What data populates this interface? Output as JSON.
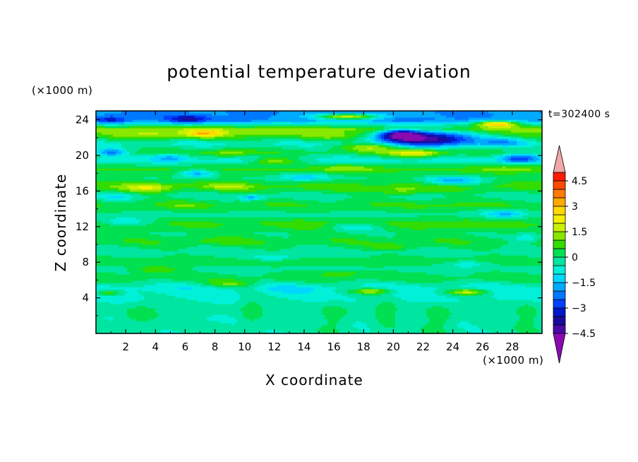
{
  "chart_data": {
    "type": "heatmap",
    "title": "potential temperature deviation",
    "xlabel": "X coordinate",
    "ylabel": "Z coordinate",
    "x_unit": "(×1000 m)",
    "y_unit": "(×1000 m)",
    "annotation": "t=302400 s",
    "xlim": [
      0,
      30
    ],
    "ylim": [
      0,
      25
    ],
    "x_ticks": [
      2,
      4,
      6,
      8,
      10,
      12,
      14,
      16,
      18,
      20,
      22,
      24,
      26,
      28
    ],
    "y_ticks": [
      4,
      8,
      12,
      16,
      20,
      24
    ],
    "colorbar": {
      "levels": [
        -5,
        -4.5,
        -4,
        -3.5,
        -3,
        -2.5,
        -2,
        -1.5,
        -1,
        -0.5,
        0,
        0.5,
        1,
        1.5,
        2,
        2.5,
        3,
        3.5,
        4,
        4.5,
        5
      ],
      "tick_labels": [
        "4.5",
        "3",
        "1.5",
        "0",
        "−1.5",
        "−3",
        "−4.5"
      ],
      "tick_values": [
        4.5,
        3,
        1.5,
        0,
        -1.5,
        -3,
        -4.5
      ],
      "colors": [
        "#8a0ab0",
        "#4a0aa8",
        "#1a0c9a",
        "#0018c8",
        "#0040ff",
        "#0078ff",
        "#00aaff",
        "#00d8ff",
        "#00f0d8",
        "#00e6a0",
        "#00e050",
        "#33dd00",
        "#88e800",
        "#c8f000",
        "#f0f000",
        "#ffd800",
        "#ffaa00",
        "#ff7a00",
        "#ff4a00",
        "#ff1a00",
        "#f0a8a8"
      ],
      "extend": "both"
    },
    "layers": [
      {
        "z": 24.0,
        "value": -2.0
      },
      {
        "z": 23.0,
        "value": 1.2
      },
      {
        "z": 22.2,
        "value": 0.6
      },
      {
        "z": 21.4,
        "value": -0.6
      },
      {
        "z": 20.4,
        "value": 0.3
      },
      {
        "z": 19.5,
        "value": -0.8
      },
      {
        "z": 18.5,
        "value": 0.6
      },
      {
        "z": 17.5,
        "value": 0.1
      },
      {
        "z": 16.5,
        "value": 0.8
      },
      {
        "z": 15.5,
        "value": -0.3
      },
      {
        "z": 14.5,
        "value": 0.5
      },
      {
        "z": 13.4,
        "value": -0.2
      },
      {
        "z": 12.4,
        "value": 0.6
      },
      {
        "z": 11.3,
        "value": 0.1
      },
      {
        "z": 10.3,
        "value": 0.4
      },
      {
        "z": 9.2,
        "value": -0.3
      },
      {
        "z": 8.2,
        "value": 0.3
      },
      {
        "z": 7.2,
        "value": -0.2
      },
      {
        "z": 6.2,
        "value": 0.3
      },
      {
        "z": 5.2,
        "value": -0.8
      },
      {
        "z": 4.0,
        "value": -0.6
      },
      {
        "z": 2.8,
        "value": -0.3
      },
      {
        "z": 1.6,
        "value": -0.5
      },
      {
        "z": 0.5,
        "value": -0.3
      }
    ],
    "features": [
      {
        "x": 1.0,
        "z": 24.0,
        "value": -3.4,
        "rx": 1.1,
        "rz": 0.45
      },
      {
        "x": 6.2,
        "z": 24.1,
        "value": -3.6,
        "rx": 1.5,
        "rz": 0.5
      },
      {
        "x": 9.5,
        "z": 24.0,
        "value": -2.6,
        "rx": 1.0,
        "rz": 0.4
      },
      {
        "x": 12.5,
        "z": 24.2,
        "value": -1.8,
        "rx": 1.0,
        "rz": 0.4
      },
      {
        "x": 17.0,
        "z": 24.4,
        "value": 1.6,
        "rx": 2.2,
        "rz": 0.35
      },
      {
        "x": 21.0,
        "z": 24.0,
        "value": -2.4,
        "rx": 1.5,
        "rz": 0.45
      },
      {
        "x": 27.0,
        "z": 23.6,
        "value": 2.8,
        "rx": 1.4,
        "rz": 0.4
      },
      {
        "x": 3.8,
        "z": 22.4,
        "value": 1.6,
        "rx": 2.2,
        "rz": 0.5
      },
      {
        "x": 7.3,
        "z": 22.5,
        "value": 3.0,
        "rx": 1.3,
        "rz": 0.45
      },
      {
        "x": 11.5,
        "z": 22.6,
        "value": 1.4,
        "rx": 2.0,
        "rz": 0.4
      },
      {
        "x": 15.5,
        "z": 22.2,
        "value": 1.2,
        "rx": 2.0,
        "rz": 0.5
      },
      {
        "x": 22.5,
        "z": 22.0,
        "value": -4.2,
        "rx": 3.2,
        "rz": 0.85
      },
      {
        "x": 20.5,
        "z": 22.4,
        "value": -3.0,
        "rx": 1.4,
        "rz": 0.6
      },
      {
        "x": 27.5,
        "z": 21.6,
        "value": -1.5,
        "rx": 1.5,
        "rz": 0.5
      },
      {
        "x": 18.5,
        "z": 21.0,
        "value": 1.4,
        "rx": 2.0,
        "rz": 0.5
      },
      {
        "x": 21.5,
        "z": 20.3,
        "value": 2.5,
        "rx": 1.8,
        "rz": 0.45
      },
      {
        "x": 28.5,
        "z": 19.7,
        "value": -3.0,
        "rx": 1.3,
        "rz": 0.55
      },
      {
        "x": 1.0,
        "z": 20.4,
        "value": -2.0,
        "rx": 1.0,
        "rz": 0.4
      },
      {
        "x": 5.0,
        "z": 19.8,
        "value": -1.8,
        "rx": 1.1,
        "rz": 0.45
      },
      {
        "x": 9.0,
        "z": 20.3,
        "value": 1.4,
        "rx": 1.6,
        "rz": 0.45
      },
      {
        "x": 12.0,
        "z": 19.4,
        "value": 1.2,
        "rx": 1.6,
        "rz": 0.4
      },
      {
        "x": 27.5,
        "z": 18.6,
        "value": 1.2,
        "rx": 2.4,
        "rz": 0.5
      },
      {
        "x": 17.0,
        "z": 18.6,
        "value": 1.4,
        "rx": 2.0,
        "rz": 0.45
      },
      {
        "x": 6.8,
        "z": 18.0,
        "value": -1.6,
        "rx": 1.2,
        "rz": 0.45
      },
      {
        "x": 14.0,
        "z": 17.6,
        "value": -1.4,
        "rx": 1.8,
        "rz": 0.5
      },
      {
        "x": 24.0,
        "z": 17.2,
        "value": -1.6,
        "rx": 2.0,
        "rz": 0.5
      },
      {
        "x": 3.5,
        "z": 16.4,
        "value": 2.1,
        "rx": 1.5,
        "rz": 0.5
      },
      {
        "x": 9.0,
        "z": 16.6,
        "value": 1.6,
        "rx": 1.5,
        "rz": 0.4
      },
      {
        "x": 20.5,
        "z": 16.0,
        "value": 1.2,
        "rx": 1.6,
        "rz": 0.5
      },
      {
        "x": 10.5,
        "z": 15.3,
        "value": -1.8,
        "rx": 0.8,
        "rz": 0.3
      },
      {
        "x": 1.5,
        "z": 15.4,
        "value": -1.0,
        "rx": 1.2,
        "rz": 0.45
      },
      {
        "x": 23.0,
        "z": 14.5,
        "value": 0.8,
        "rx": 2.0,
        "rz": 1.0
      },
      {
        "x": 27.5,
        "z": 13.5,
        "value": -1.6,
        "rx": 1.4,
        "rz": 0.5
      },
      {
        "x": 6.0,
        "z": 14.4,
        "value": 0.9,
        "rx": 1.6,
        "rz": 0.5
      },
      {
        "x": 24.5,
        "z": 12.2,
        "value": 0.9,
        "rx": 1.8,
        "rz": 0.6
      },
      {
        "x": 2.0,
        "z": 12.6,
        "value": -0.8,
        "rx": 1.8,
        "rz": 0.5
      },
      {
        "x": 14.0,
        "z": 12.3,
        "value": 0.9,
        "rx": 1.6,
        "rz": 0.5
      },
      {
        "x": 17.5,
        "z": 12.0,
        "value": -0.8,
        "rx": 1.6,
        "rz": 0.5
      },
      {
        "x": 29.0,
        "z": 10.8,
        "value": -1.0,
        "rx": 1.0,
        "rz": 0.5
      },
      {
        "x": 8.0,
        "z": 10.4,
        "value": 0.9,
        "rx": 1.6,
        "rz": 0.4
      },
      {
        "x": 20.0,
        "z": 9.8,
        "value": 0.8,
        "rx": 1.6,
        "rz": 0.4
      },
      {
        "x": 12.0,
        "z": 8.6,
        "value": -0.8,
        "rx": 1.6,
        "rz": 0.4
      },
      {
        "x": 25.0,
        "z": 7.8,
        "value": -0.8,
        "rx": 1.4,
        "rz": 0.4
      },
      {
        "x": 4.0,
        "z": 7.2,
        "value": 0.9,
        "rx": 1.6,
        "rz": 0.4
      },
      {
        "x": 16.5,
        "z": 6.8,
        "value": 0.9,
        "rx": 1.6,
        "rz": 0.4
      },
      {
        "x": 9.0,
        "z": 5.6,
        "value": 0.9,
        "rx": 1.5,
        "rz": 0.4
      },
      {
        "x": 18.5,
        "z": 4.8,
        "value": 1.3,
        "rx": 1.4,
        "rz": 0.35
      },
      {
        "x": 25.0,
        "z": 4.7,
        "value": 1.4,
        "rx": 1.4,
        "rz": 0.35
      },
      {
        "x": 0.8,
        "z": 4.6,
        "value": 1.0,
        "rx": 0.8,
        "rz": 0.3
      },
      {
        "x": 13.0,
        "z": 5.0,
        "value": -1.2,
        "rx": 1.6,
        "rz": 0.45
      },
      {
        "x": 3.0,
        "z": 2.0,
        "value": 0.4,
        "rx": 1.2,
        "rz": 1.2
      },
      {
        "x": 10.5,
        "z": 2.5,
        "value": 0.4,
        "rx": 0.8,
        "rz": 1.8
      },
      {
        "x": 16.0,
        "z": 2.0,
        "value": 0.4,
        "rx": 1.0,
        "rz": 1.4
      },
      {
        "x": 19.5,
        "z": 2.2,
        "value": 0.4,
        "rx": 0.8,
        "rz": 1.6
      },
      {
        "x": 23.0,
        "z": 1.8,
        "value": 0.4,
        "rx": 1.0,
        "rz": 1.4
      },
      {
        "x": 29.0,
        "z": 2.0,
        "value": 0.4,
        "rx": 0.8,
        "rz": 1.5
      }
    ]
  }
}
